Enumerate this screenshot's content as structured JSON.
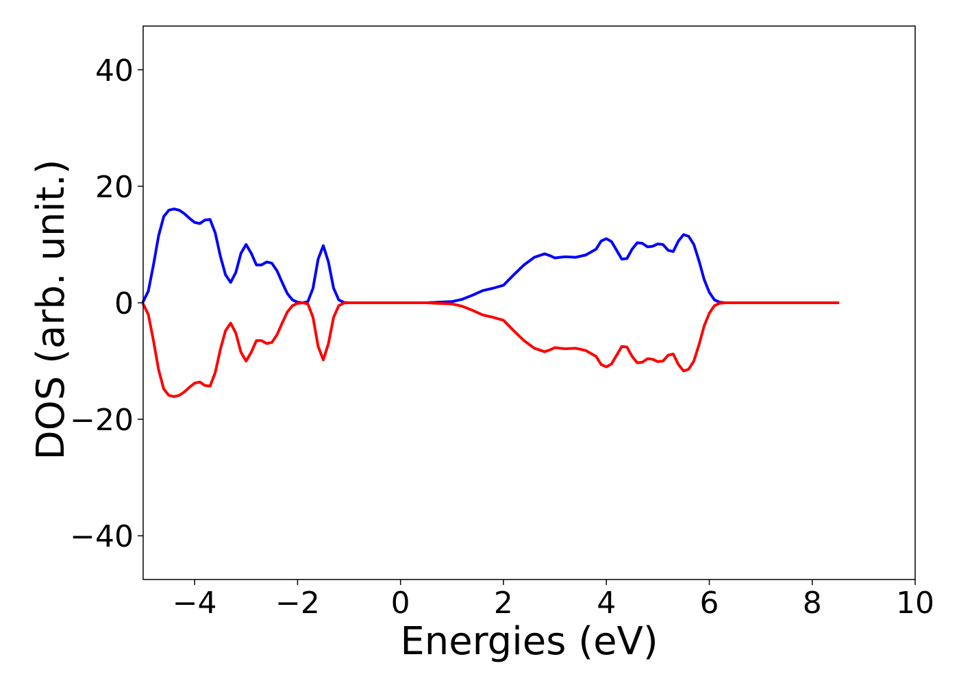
{
  "chart_data": {
    "type": "line",
    "title": "",
    "xlabel": "Energies (eV)",
    "ylabel": "DOS (arb. unit.)",
    "xlim": [
      -5,
      10
    ],
    "ylim": [
      -47.5,
      47.5
    ],
    "xticks": [
      -4,
      -2,
      0,
      2,
      4,
      6,
      8,
      10
    ],
    "xtick_labels": [
      "−4",
      "−2",
      "0",
      "2",
      "4",
      "6",
      "8",
      "10"
    ],
    "yticks": [
      40,
      20,
      0,
      -20,
      -40
    ],
    "ytick_labels": [
      "40",
      "20",
      "0",
      "−20",
      "−40"
    ],
    "grid": false,
    "legend": "none",
    "series": [
      {
        "color": "#0000ff",
        "x": [
          -5.0,
          -4.9,
          -4.8,
          -4.7,
          -4.6,
          -4.5,
          -4.4,
          -4.3,
          -4.2,
          -4.1,
          -4.0,
          -3.9,
          -3.8,
          -3.7,
          -3.6,
          -3.5,
          -3.4,
          -3.3,
          -3.2,
          -3.1,
          -3.0,
          -2.9,
          -2.8,
          -2.7,
          -2.6,
          -2.5,
          -2.4,
          -2.3,
          -2.2,
          -2.1,
          -2.0,
          -1.9,
          -1.8,
          -1.7,
          -1.6,
          -1.5,
          -1.4,
          -1.3,
          -1.2,
          -1.1,
          -1.0,
          -0.9,
          -0.8,
          -0.7,
          -0.6,
          -0.5,
          0.0,
          0.5,
          1.0,
          1.2,
          1.4,
          1.6,
          1.8,
          2.0,
          2.2,
          2.4,
          2.6,
          2.8,
          2.9,
          3.0,
          3.2,
          3.4,
          3.6,
          3.8,
          3.9,
          4.0,
          4.1,
          4.2,
          4.3,
          4.4,
          4.5,
          4.6,
          4.7,
          4.8,
          4.9,
          5.0,
          5.1,
          5.2,
          5.3,
          5.4,
          5.5,
          5.6,
          5.7,
          5.8,
          5.9,
          6.0,
          6.1,
          6.2,
          6.3,
          6.4,
          6.5,
          6.6,
          6.7,
          6.8,
          7.0,
          7.5,
          8.0,
          8.5
        ],
        "y": [
          0.2,
          2.0,
          6.5,
          11.5,
          14.8,
          15.9,
          16.1,
          15.9,
          15.3,
          14.5,
          13.8,
          13.6,
          14.2,
          14.3,
          12.0,
          8.0,
          4.8,
          3.5,
          5.2,
          8.5,
          10.0,
          8.5,
          6.5,
          6.5,
          7.0,
          6.8,
          5.5,
          3.5,
          1.6,
          0.5,
          0.1,
          0.0,
          0.2,
          2.5,
          7.5,
          9.8,
          7.0,
          2.5,
          0.5,
          0.05,
          0.0,
          0.0,
          0.0,
          0.0,
          0.0,
          0.0,
          0.0,
          0.0,
          0.2,
          0.6,
          1.3,
          2.1,
          2.5,
          3.0,
          4.8,
          6.5,
          7.8,
          8.4,
          8.1,
          7.7,
          7.9,
          7.8,
          8.2,
          9.2,
          10.6,
          11.0,
          10.5,
          9.0,
          7.5,
          7.6,
          9.2,
          10.3,
          10.2,
          9.6,
          9.7,
          10.1,
          10.0,
          9.0,
          8.8,
          10.6,
          11.7,
          11.4,
          10.0,
          7.2,
          4.0,
          1.8,
          0.5,
          0.1,
          0.0,
          0.0,
          0.0,
          0.0,
          0.0,
          0.0,
          0.0,
          0.0,
          0.0,
          0.0
        ]
      },
      {
        "color": "#ff0000",
        "x": [
          -5.0,
          -4.9,
          -4.8,
          -4.7,
          -4.6,
          -4.5,
          -4.4,
          -4.3,
          -4.2,
          -4.1,
          -4.0,
          -3.9,
          -3.8,
          -3.7,
          -3.6,
          -3.5,
          -3.4,
          -3.3,
          -3.2,
          -3.1,
          -3.0,
          -2.9,
          -2.8,
          -2.7,
          -2.6,
          -2.5,
          -2.4,
          -2.3,
          -2.2,
          -2.1,
          -2.0,
          -1.9,
          -1.8,
          -1.7,
          -1.6,
          -1.5,
          -1.4,
          -1.3,
          -1.2,
          -1.1,
          -1.0,
          -0.9,
          -0.8,
          -0.7,
          -0.6,
          -0.5,
          0.0,
          0.5,
          1.0,
          1.2,
          1.4,
          1.6,
          1.8,
          2.0,
          2.2,
          2.4,
          2.6,
          2.8,
          2.9,
          3.0,
          3.2,
          3.4,
          3.6,
          3.8,
          3.9,
          4.0,
          4.1,
          4.2,
          4.3,
          4.4,
          4.5,
          4.6,
          4.7,
          4.8,
          4.9,
          5.0,
          5.1,
          5.2,
          5.3,
          5.4,
          5.5,
          5.6,
          5.7,
          5.8,
          5.9,
          6.0,
          6.1,
          6.2,
          6.3,
          6.4,
          6.5,
          6.6,
          6.7,
          6.8,
          7.0,
          7.5,
          8.0,
          8.5
        ],
        "y": [
          -0.2,
          -2.0,
          -6.5,
          -11.5,
          -14.8,
          -15.9,
          -16.1,
          -15.9,
          -15.3,
          -14.5,
          -13.8,
          -13.6,
          -14.2,
          -14.3,
          -12.0,
          -8.0,
          -4.8,
          -3.5,
          -5.2,
          -8.5,
          -10.0,
          -8.5,
          -6.5,
          -6.5,
          -7.0,
          -6.8,
          -5.5,
          -3.5,
          -1.6,
          -0.5,
          -0.1,
          0.0,
          -0.2,
          -2.5,
          -7.5,
          -9.8,
          -7.0,
          -2.5,
          -0.5,
          -0.05,
          0.0,
          0.0,
          0.0,
          0.0,
          0.0,
          0.0,
          0.0,
          0.0,
          -0.2,
          -0.6,
          -1.3,
          -2.1,
          -2.5,
          -3.0,
          -4.8,
          -6.5,
          -7.8,
          -8.4,
          -8.1,
          -7.7,
          -7.9,
          -7.8,
          -8.2,
          -9.2,
          -10.6,
          -11.0,
          -10.5,
          -9.0,
          -7.5,
          -7.6,
          -9.2,
          -10.3,
          -10.2,
          -9.6,
          -9.7,
          -10.1,
          -10.0,
          -9.0,
          -8.8,
          -10.6,
          -11.7,
          -11.4,
          -10.0,
          -7.2,
          -4.0,
          -1.8,
          -0.5,
          -0.1,
          0.0,
          0.0,
          0.0,
          0.0,
          0.0,
          0.0,
          0.0,
          0.0,
          0.0,
          0.0
        ]
      }
    ]
  }
}
